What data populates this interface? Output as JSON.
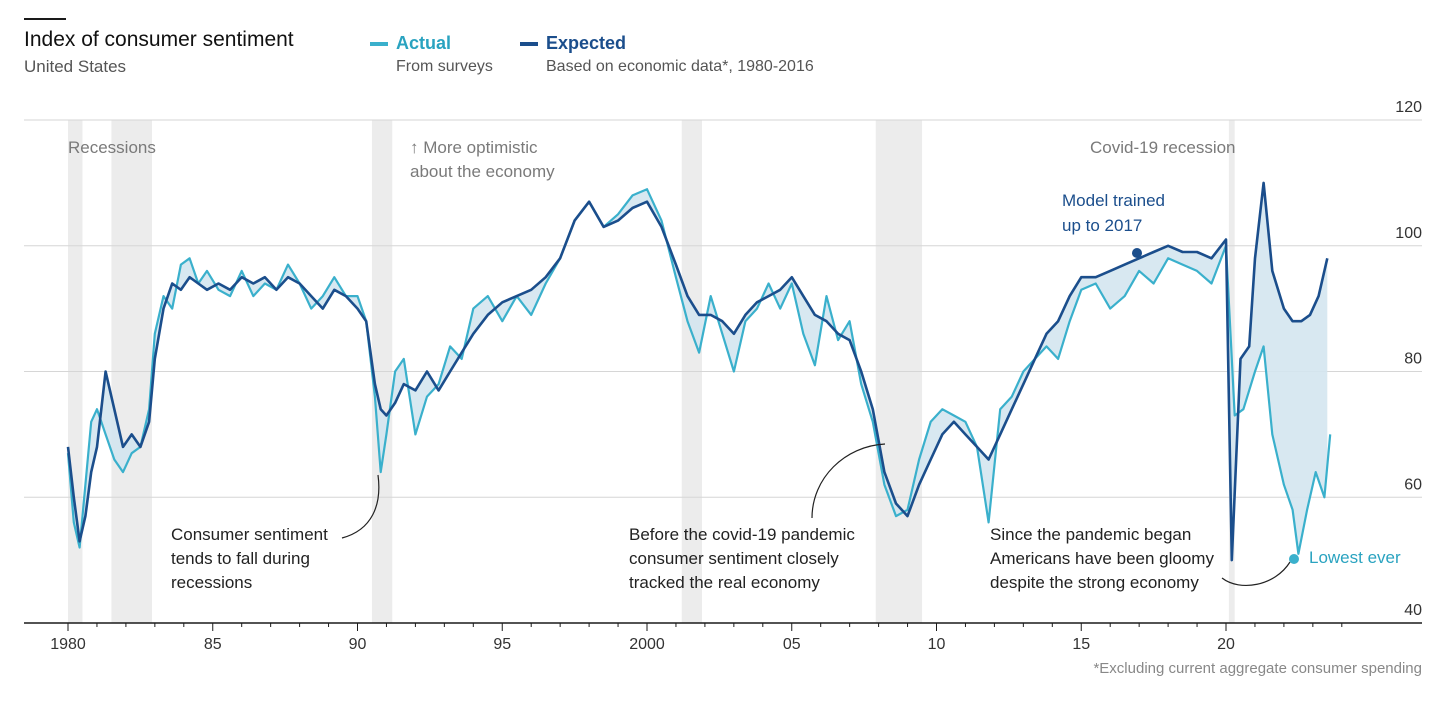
{
  "header": {
    "title": "Index of consumer sentiment",
    "subtitle": "United States",
    "footnote": "*Excluding current aggregate consumer spending"
  },
  "legend": {
    "actual": {
      "name": "Actual",
      "desc": "From surveys",
      "color": "#3ab0cc"
    },
    "expected": {
      "name": "Expected",
      "desc": "Based on economic data*, 1980-2016",
      "color": "#1b4e8c"
    }
  },
  "annotations": {
    "recessions": "Recessions",
    "optimistic_1": "↑ More optimistic",
    "optimistic_2": "about the economy",
    "covid_recession": "Covid-19 recession",
    "model_1": "Model trained",
    "model_2": "up to 2017",
    "fall_1": "Consumer sentiment",
    "fall_2": "tends to fall during",
    "fall_3": "recessions",
    "before_1": "Before the covid-19 pandemic",
    "before_2": "consumer sentiment closely",
    "before_3": "tracked the real economy",
    "since_1": "Since the pandemic began",
    "since_2": "Americans have been gloomy",
    "since_3": "despite the strong economy",
    "lowest": "Lowest ever"
  },
  "chart_data": {
    "type": "line",
    "xlim": [
      1980,
      2024.5
    ],
    "ylim": [
      40,
      120
    ],
    "ylabel_ticks": [
      "120",
      "100",
      "80",
      "60",
      "40"
    ],
    "yticks": [
      120,
      100,
      80,
      60,
      40
    ],
    "xticks": [
      1980,
      1985,
      1990,
      1995,
      2000,
      2005,
      2010,
      2015,
      2020
    ],
    "xtick_labels": [
      "1980",
      "85",
      "90",
      "95",
      "2000",
      "05",
      "10",
      "15",
      "20"
    ],
    "grid": true,
    "recessions": [
      [
        1980.0,
        1980.5
      ],
      [
        1981.5,
        1982.9
      ],
      [
        1990.5,
        1991.2
      ],
      [
        2001.2,
        2001.9
      ],
      [
        2007.9,
        2009.5
      ],
      [
        2020.1,
        2020.3
      ]
    ],
    "series": [
      {
        "name": "Actual",
        "color": "#3ab0cc",
        "x": [
          1980.0,
          1980.2,
          1980.4,
          1980.6,
          1980.8,
          1981.0,
          1981.3,
          1981.6,
          1981.9,
          1982.2,
          1982.5,
          1982.8,
          1983.0,
          1983.3,
          1983.6,
          1983.9,
          1984.2,
          1984.5,
          1984.8,
          1985.2,
          1985.6,
          1986.0,
          1986.4,
          1986.8,
          1987.2,
          1987.6,
          1988.0,
          1988.4,
          1988.8,
          1989.2,
          1989.6,
          1990.0,
          1990.3,
          1990.6,
          1990.8,
          1991.0,
          1991.3,
          1991.6,
          1992.0,
          1992.4,
          1992.8,
          1993.2,
          1993.6,
          1994.0,
          1994.5,
          1995.0,
          1995.5,
          1996.0,
          1996.5,
          1997.0,
          1997.5,
          1998.0,
          1998.5,
          1999.0,
          1999.5,
          2000.0,
          2000.5,
          2001.0,
          2001.4,
          2001.8,
          2002.2,
          2002.6,
          2003.0,
          2003.4,
          2003.8,
          2004.2,
          2004.6,
          2005.0,
          2005.4,
          2005.8,
          2006.2,
          2006.6,
          2007.0,
          2007.4,
          2007.8,
          2008.2,
          2008.6,
          2009.0,
          2009.4,
          2009.8,
          2010.2,
          2010.6,
          2011.0,
          2011.4,
          2011.8,
          2012.2,
          2012.6,
          2013.0,
          2013.4,
          2013.8,
          2014.2,
          2014.6,
          2015.0,
          2015.5,
          2016.0,
          2016.5,
          2017.0,
          2017.5,
          2018.0,
          2018.5,
          2019.0,
          2019.5,
          2020.0,
          2020.3,
          2020.6,
          2021.0,
          2021.3,
          2021.6,
          2022.0,
          2022.3,
          2022.5,
          2022.8,
          2023.1,
          2023.4,
          2023.6
        ],
        "y": [
          67,
          56,
          52,
          62,
          72,
          74,
          70,
          66,
          64,
          67,
          68,
          74,
          86,
          92,
          90,
          97,
          98,
          94,
          96,
          93,
          92,
          96,
          92,
          94,
          93,
          97,
          94,
          90,
          92,
          95,
          92,
          92,
          88,
          76,
          64,
          70,
          80,
          82,
          70,
          76,
          78,
          84,
          82,
          90,
          92,
          88,
          92,
          89,
          94,
          98,
          104,
          107,
          103,
          105,
          108,
          109,
          104,
          95,
          88,
          83,
          92,
          86,
          80,
          88,
          90,
          94,
          90,
          94,
          86,
          81,
          92,
          85,
          88,
          78,
          72,
          62,
          57,
          58,
          66,
          72,
          74,
          73,
          72,
          68,
          56,
          74,
          76,
          80,
          82,
          84,
          82,
          88,
          93,
          94,
          90,
          92,
          96,
          94,
          98,
          97,
          96,
          94,
          100,
          73,
          74,
          80,
          84,
          70,
          62,
          58,
          51,
          58,
          64,
          60,
          70
        ]
      },
      {
        "name": "Expected",
        "color": "#1b4e8c",
        "x": [
          1980.0,
          1980.2,
          1980.4,
          1980.6,
          1980.8,
          1981.0,
          1981.3,
          1981.6,
          1981.9,
          1982.2,
          1982.5,
          1982.8,
          1983.0,
          1983.3,
          1983.6,
          1983.9,
          1984.2,
          1984.5,
          1984.8,
          1985.2,
          1985.6,
          1986.0,
          1986.4,
          1986.8,
          1987.2,
          1987.6,
          1988.0,
          1988.4,
          1988.8,
          1989.2,
          1989.6,
          1990.0,
          1990.3,
          1990.6,
          1990.8,
          1991.0,
          1991.3,
          1991.6,
          1992.0,
          1992.4,
          1992.8,
          1993.2,
          1993.6,
          1994.0,
          1994.5,
          1995.0,
          1995.5,
          1996.0,
          1996.5,
          1997.0,
          1997.5,
          1998.0,
          1998.5,
          1999.0,
          1999.5,
          2000.0,
          2000.5,
          2001.0,
          2001.4,
          2001.8,
          2002.2,
          2002.6,
          2003.0,
          2003.4,
          2003.8,
          2004.2,
          2004.6,
          2005.0,
          2005.4,
          2005.8,
          2006.2,
          2006.6,
          2007.0,
          2007.4,
          2007.8,
          2008.2,
          2008.6,
          2009.0,
          2009.4,
          2009.8,
          2010.2,
          2010.6,
          2011.0,
          2011.4,
          2011.8,
          2012.2,
          2012.6,
          2013.0,
          2013.4,
          2013.8,
          2014.2,
          2014.6,
          2015.0,
          2015.5,
          2016.0,
          2016.5,
          2017.0,
          2017.5,
          2018.0,
          2018.5,
          2019.0,
          2019.5,
          2020.0,
          2020.2,
          2020.5,
          2020.8,
          2021.0,
          2021.3,
          2021.6,
          2022.0,
          2022.3,
          2022.6,
          2022.9,
          2023.2,
          2023.5
        ],
        "y": [
          68,
          60,
          53,
          57,
          64,
          68,
          80,
          74,
          68,
          70,
          68,
          72,
          82,
          90,
          94,
          93,
          95,
          94,
          93,
          94,
          93,
          95,
          94,
          95,
          93,
          95,
          94,
          92,
          90,
          93,
          92,
          90,
          88,
          78,
          74,
          73,
          75,
          78,
          77,
          80,
          77,
          80,
          83,
          86,
          89,
          91,
          92,
          93,
          95,
          98,
          104,
          107,
          103,
          104,
          106,
          107,
          103,
          97,
          92,
          89,
          89,
          88,
          86,
          89,
          91,
          92,
          93,
          95,
          92,
          89,
          88,
          86,
          85,
          80,
          74,
          64,
          59,
          57,
          62,
          66,
          70,
          72,
          70,
          68,
          66,
          70,
          74,
          78,
          82,
          86,
          88,
          92,
          95,
          95,
          96,
          97,
          98,
          99,
          100,
          99,
          99,
          98,
          101,
          50,
          82,
          84,
          98,
          110,
          96,
          90,
          88,
          88,
          89,
          92,
          98
        ]
      }
    ]
  }
}
